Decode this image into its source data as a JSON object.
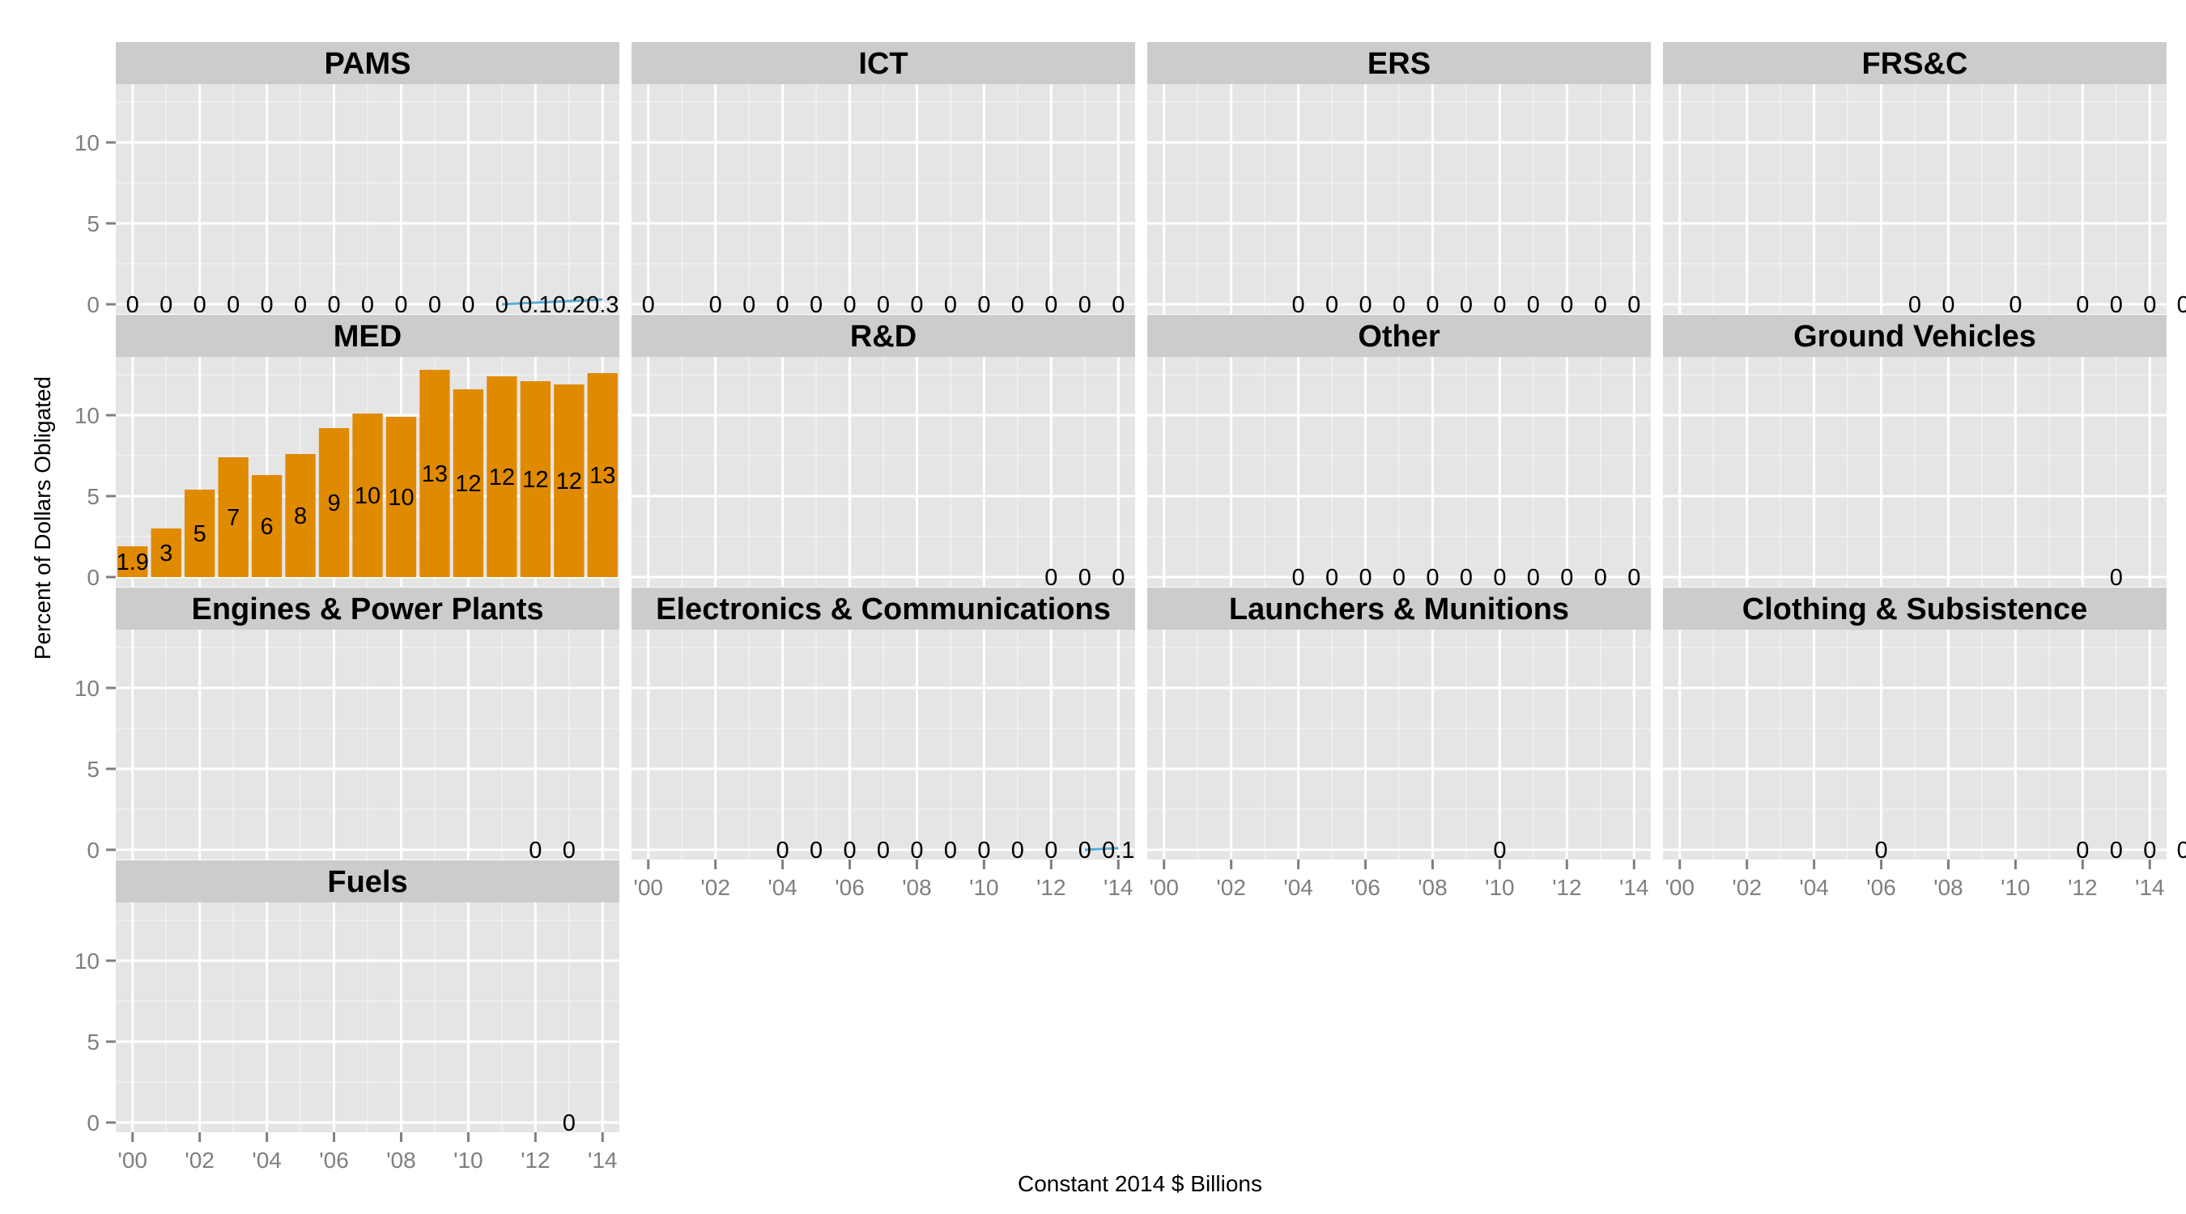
{
  "chart_data": {
    "type": "bar",
    "facet_layout": "4 columns",
    "xlabel": "Constant 2014 $ Billions",
    "ylabel": "Percent of Dollars Obligated",
    "x_ticks": [
      "'00",
      "'02",
      "'04",
      "'06",
      "'08",
      "'10",
      "'12",
      "'14"
    ],
    "x_tick_years": [
      2000,
      2002,
      2004,
      2006,
      2008,
      2010,
      2012,
      2014
    ],
    "xlim": [
      1999.5,
      2014.5
    ],
    "y_ticks": [
      0,
      5,
      10
    ],
    "ylim": [
      -0.6,
      13.6
    ],
    "grid": true,
    "colors": {
      "panel_bg": "#e5e5e5",
      "strip_bg": "#cccccc",
      "grid": "#ffffff",
      "bar": "#e08a00",
      "line": "#5aaed6"
    },
    "panels": [
      {
        "name": "PAMS",
        "years": [
          2000,
          2001,
          2002,
          2003,
          2004,
          2005,
          2006,
          2007,
          2008,
          2009,
          2010,
          2011,
          2012,
          2013,
          2014
        ],
        "values": [
          0,
          0,
          0,
          0,
          0,
          0,
          0,
          0,
          0,
          0,
          0,
          0,
          0.1,
          0.2,
          0.3
        ],
        "labels": [
          "0",
          "0",
          "0",
          "0",
          "0",
          "0",
          "0",
          "0",
          "0",
          "0",
          "0",
          "0",
          "0.1",
          "0.2",
          "0.3"
        ]
      },
      {
        "name": "ICT",
        "years": [
          2000,
          2002,
          2003,
          2004,
          2005,
          2006,
          2007,
          2008,
          2009,
          2010,
          2011,
          2012,
          2013,
          2014
        ],
        "values": [
          0,
          0,
          0,
          0,
          0,
          0,
          0,
          0,
          0,
          0,
          0,
          0,
          0,
          0
        ],
        "labels": [
          "0",
          "0",
          "0",
          "0",
          "0",
          "0",
          "0",
          "0",
          "0",
          "0",
          "0",
          "0",
          "0",
          "0"
        ]
      },
      {
        "name": "ERS",
        "years": [
          2004,
          2005,
          2006,
          2007,
          2008,
          2009,
          2010,
          2011,
          2012,
          2013,
          2014
        ],
        "values": [
          0,
          0,
          0,
          0,
          0,
          0,
          0,
          0,
          0,
          0,
          0
        ],
        "labels": [
          "0",
          "0",
          "0",
          "0",
          "0",
          "0",
          "0",
          "0",
          "0",
          "0",
          "0"
        ]
      },
      {
        "name": "FRS&C",
        "years": [
          2007,
          2008,
          2010,
          2012,
          2013,
          2014,
          2015
        ],
        "values": [
          0,
          0,
          0,
          0,
          0,
          0,
          0
        ],
        "labels": [
          "0",
          "0",
          "0",
          "0",
          "0",
          "0",
          "0"
        ]
      },
      {
        "name": "MED",
        "years": [
          2000,
          2001,
          2002,
          2003,
          2004,
          2005,
          2006,
          2007,
          2008,
          2009,
          2010,
          2011,
          2012,
          2013,
          2014
        ],
        "values": [
          1.9,
          3.0,
          5.4,
          7.4,
          6.3,
          7.6,
          9.2,
          10.1,
          9.9,
          12.8,
          11.6,
          12.4,
          12.1,
          11.9,
          12.6
        ],
        "labels": [
          "1.9",
          "3",
          "5",
          "7",
          "6",
          "8",
          "9",
          "10",
          "10",
          "13",
          "12",
          "12",
          "12",
          "12",
          "13"
        ]
      },
      {
        "name": "R&D",
        "years": [
          2012,
          2013,
          2014
        ],
        "values": [
          0,
          0,
          0
        ],
        "labels": [
          "0",
          "0",
          "0"
        ]
      },
      {
        "name": "Other",
        "years": [
          2004,
          2005,
          2006,
          2007,
          2008,
          2009,
          2010,
          2011,
          2012,
          2013,
          2014
        ],
        "values": [
          0,
          0,
          0,
          0,
          0,
          0,
          0,
          0,
          0,
          0,
          0
        ],
        "labels": [
          "0",
          "0",
          "0",
          "0",
          "0",
          "0",
          "0",
          "0",
          "0",
          "0",
          "0"
        ]
      },
      {
        "name": "Ground Vehicles",
        "years": [
          2013
        ],
        "values": [
          0
        ],
        "labels": [
          "0"
        ]
      },
      {
        "name": "Engines & Power Plants",
        "years": [
          2012,
          2013
        ],
        "values": [
          0,
          0
        ],
        "labels": [
          "0",
          "0"
        ]
      },
      {
        "name": "Electronics & Communications",
        "years": [
          2004,
          2005,
          2006,
          2007,
          2008,
          2009,
          2010,
          2011,
          2012,
          2013,
          2014
        ],
        "values": [
          0,
          0,
          0,
          0,
          0,
          0,
          0,
          0,
          0,
          0,
          0.1
        ],
        "labels": [
          "0",
          "0",
          "0",
          "0",
          "0",
          "0",
          "0",
          "0",
          "0",
          "0",
          "0.1"
        ]
      },
      {
        "name": "Launchers & Munitions",
        "years": [
          2010
        ],
        "values": [
          0
        ],
        "labels": [
          "0"
        ]
      },
      {
        "name": "Clothing & Subsistence",
        "years": [
          2006,
          2012,
          2013,
          2014,
          2015
        ],
        "values": [
          0,
          0,
          0,
          0,
          0
        ],
        "labels": [
          "0",
          "0",
          "0",
          "0",
          "0"
        ]
      },
      {
        "name": "Fuels",
        "years": [
          2013
        ],
        "values": [
          0
        ],
        "labels": [
          "0"
        ]
      }
    ]
  }
}
